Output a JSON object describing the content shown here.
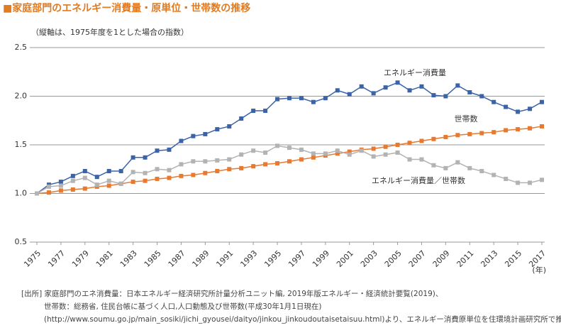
{
  "chart_data": {
    "type": "line",
    "title": "■家庭部門のエネルギー消費量・原単位・世帯数の推移",
    "subtitle": "（縦軸は、1975年度を1とした場合の指数）",
    "x_unit": "(年)",
    "x": [
      1975,
      1976,
      1977,
      1978,
      1979,
      1980,
      1981,
      1982,
      1983,
      1984,
      1985,
      1986,
      1987,
      1988,
      1989,
      1990,
      1991,
      1992,
      1993,
      1994,
      1995,
      1996,
      1997,
      1998,
      1999,
      2000,
      2001,
      2002,
      2003,
      2004,
      2005,
      2006,
      2007,
      2008,
      2009,
      2010,
      2011,
      2012,
      2013,
      2014,
      2015,
      2016,
      2017
    ],
    "series": [
      {
        "name": "エネルギー消費量",
        "color": "#3a63a8",
        "values": [
          1.0,
          1.09,
          1.12,
          1.18,
          1.23,
          1.17,
          1.23,
          1.23,
          1.37,
          1.37,
          1.44,
          1.45,
          1.54,
          1.59,
          1.61,
          1.66,
          1.69,
          1.77,
          1.85,
          1.85,
          1.97,
          1.98,
          1.98,
          1.94,
          1.98,
          2.06,
          2.02,
          2.1,
          2.03,
          2.09,
          2.14,
          2.06,
          2.1,
          2.01,
          2.0,
          2.11,
          2.04,
          2.0,
          1.94,
          1.89,
          1.84,
          1.87,
          1.94
        ]
      },
      {
        "name": "世帯数",
        "color": "#e8792e",
        "values": [
          1.0,
          1.01,
          1.03,
          1.04,
          1.05,
          1.07,
          1.08,
          1.1,
          1.12,
          1.13,
          1.15,
          1.16,
          1.18,
          1.19,
          1.21,
          1.23,
          1.25,
          1.26,
          1.28,
          1.3,
          1.31,
          1.33,
          1.35,
          1.37,
          1.39,
          1.41,
          1.43,
          1.45,
          1.46,
          1.48,
          1.5,
          1.52,
          1.54,
          1.56,
          1.58,
          1.6,
          1.61,
          1.62,
          1.63,
          1.65,
          1.66,
          1.67,
          1.69
        ]
      },
      {
        "name": "エネルギー消費量／世帯数",
        "color": "#b3b3b3",
        "values": [
          1.0,
          1.07,
          1.08,
          1.13,
          1.16,
          1.09,
          1.13,
          1.1,
          1.22,
          1.21,
          1.25,
          1.24,
          1.3,
          1.33,
          1.33,
          1.34,
          1.35,
          1.4,
          1.44,
          1.42,
          1.49,
          1.47,
          1.45,
          1.41,
          1.41,
          1.44,
          1.4,
          1.44,
          1.38,
          1.4,
          1.42,
          1.35,
          1.35,
          1.29,
          1.26,
          1.32,
          1.26,
          1.23,
          1.19,
          1.15,
          1.11,
          1.11,
          1.14
        ]
      }
    ],
    "xlim": [
      1975,
      2017
    ],
    "xticks": [
      1975,
      1977,
      1979,
      1981,
      1983,
      1985,
      1987,
      1989,
      1991,
      1993,
      1995,
      1997,
      1999,
      2001,
      2003,
      2005,
      2007,
      2009,
      2011,
      2013,
      2015,
      2017
    ],
    "ylim": [
      0.5,
      2.5
    ],
    "yticks": [
      0.5,
      {
        "value": 1.0,
        "label": "1.0"
      },
      1.5,
      {
        "value": 2.0,
        "label": "2.0"
      },
      2.5
    ],
    "grid": true,
    "source": [
      "[出所] 家庭部門のエネ消費量：日本エネルギー経済研究所計量分析ユニット編, 2019年版エネルギー・経済統計要覧(2019)、",
      "世帯数：総務省, 住民台帳に基づく人口,人口動態及び世帯数(平成30年1月1日現在)",
      "(http://www.soumu.go.jp/main_sosiki/jichi_gyousei/daityo/jinkou_jinkoudoutaisetaisuu.html)より、エネルギー消費原単位を住環境計画研究所で推計"
    ]
  }
}
